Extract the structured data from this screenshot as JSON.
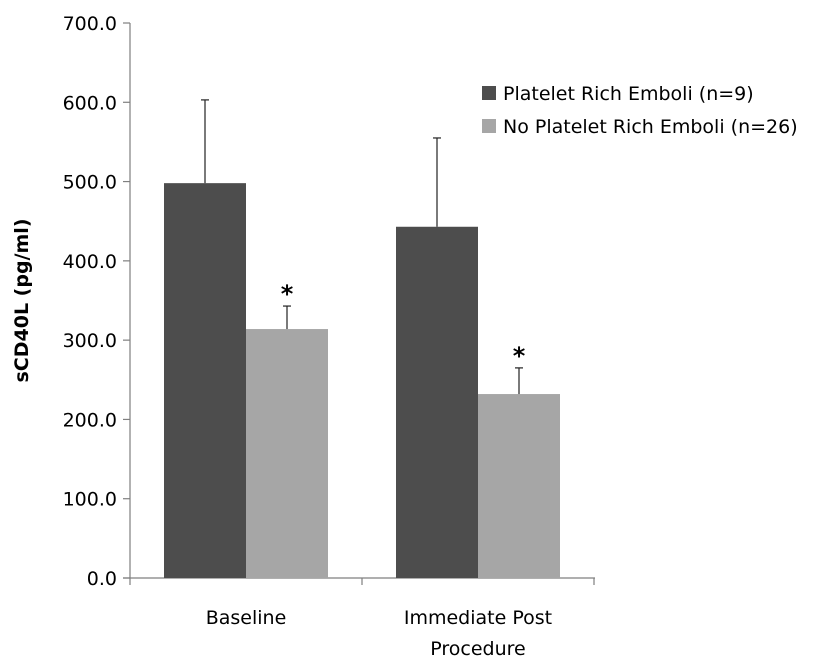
{
  "chart_data": {
    "type": "bar",
    "ylabel": "sCD40L (pg/ml)",
    "ylim": [
      0,
      700
    ],
    "yticks": [
      "0.0",
      "100.0",
      "200.0",
      "300.0",
      "400.0",
      "500.0",
      "600.0",
      "700.0"
    ],
    "categories": [
      [
        "Baseline"
      ],
      [
        "Immediate Post",
        "Procedure"
      ]
    ],
    "series": [
      {
        "name": "Platelet Rich Emboli (n=9)",
        "color": "#4d4d4d",
        "values": [
          498,
          443
        ],
        "error_upper": [
          603,
          555
        ],
        "significance": [
          "",
          ""
        ]
      },
      {
        "name": "No Platelet Rich Emboli (n=26)",
        "color": "#a6a6a6",
        "values": [
          314,
          232
        ],
        "error_upper": [
          343,
          265
        ],
        "significance": [
          "*",
          "*"
        ]
      }
    ],
    "legend_position": "top-right",
    "grid": false
  }
}
